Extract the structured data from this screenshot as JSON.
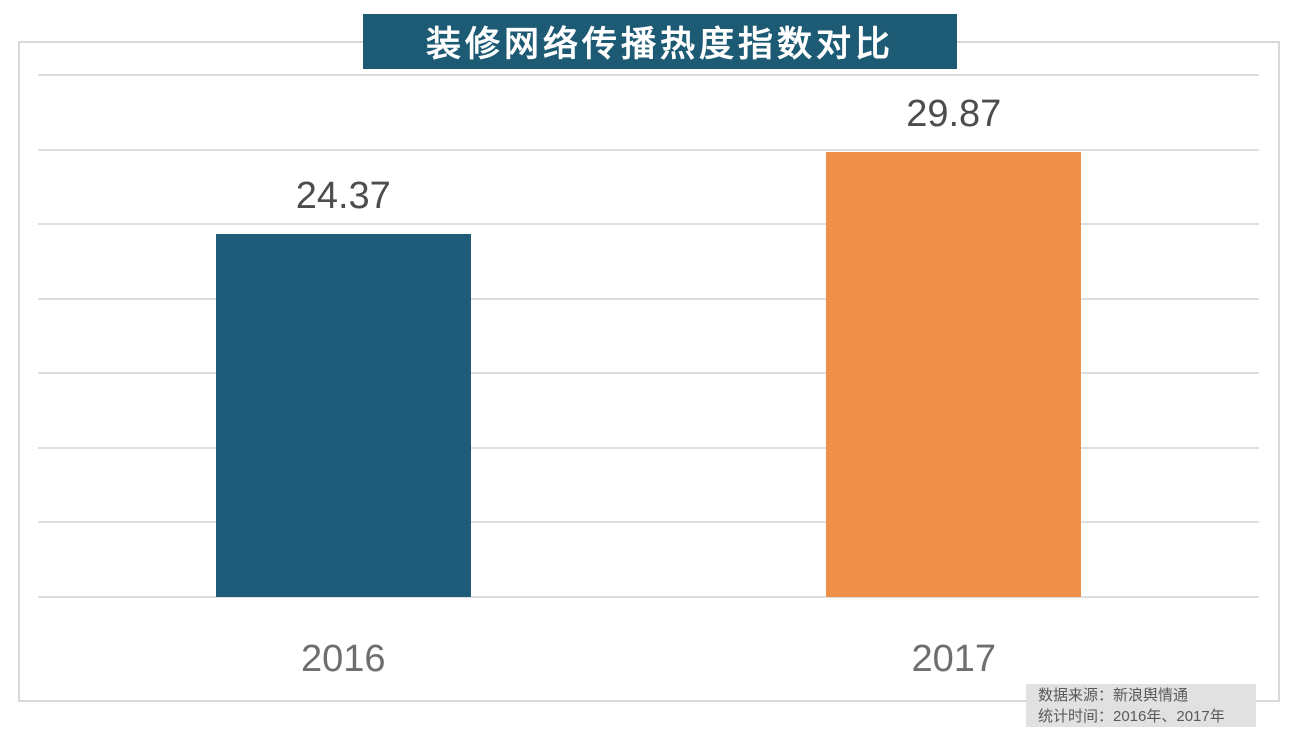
{
  "title": "装修网络传播热度指数对比",
  "source_box": {
    "line1": "数据来源：新浪舆情通",
    "line2": "统计时间：2016年、2017年"
  },
  "colors": {
    "title_bg": "#1D5A74",
    "title_text": "#FFFFFF",
    "gridline": "#DEDEDE",
    "frame_border": "#D9D9D9",
    "value_label_text": "#4D4D4D",
    "category_label_text": "#6E6E6E",
    "source_bg": "#E1E1E1",
    "source_text": "#595959"
  },
  "chart_data": {
    "type": "bar",
    "title": "装修网络传播热度指数对比",
    "categories": [
      "2016",
      "2017"
    ],
    "values": [
      24.37,
      29.87
    ],
    "value_labels": [
      "24.37",
      "29.87"
    ],
    "bar_colors": [
      "#1E5C7A",
      "#EF904A"
    ],
    "xlabel": "",
    "ylabel": "",
    "ylim": [
      0,
      35
    ],
    "grid_step": 5,
    "grid": true,
    "legend_position": "none",
    "annotations": [
      "数据来源：新浪舆情通",
      "统计时间：2016年、2017年"
    ]
  }
}
